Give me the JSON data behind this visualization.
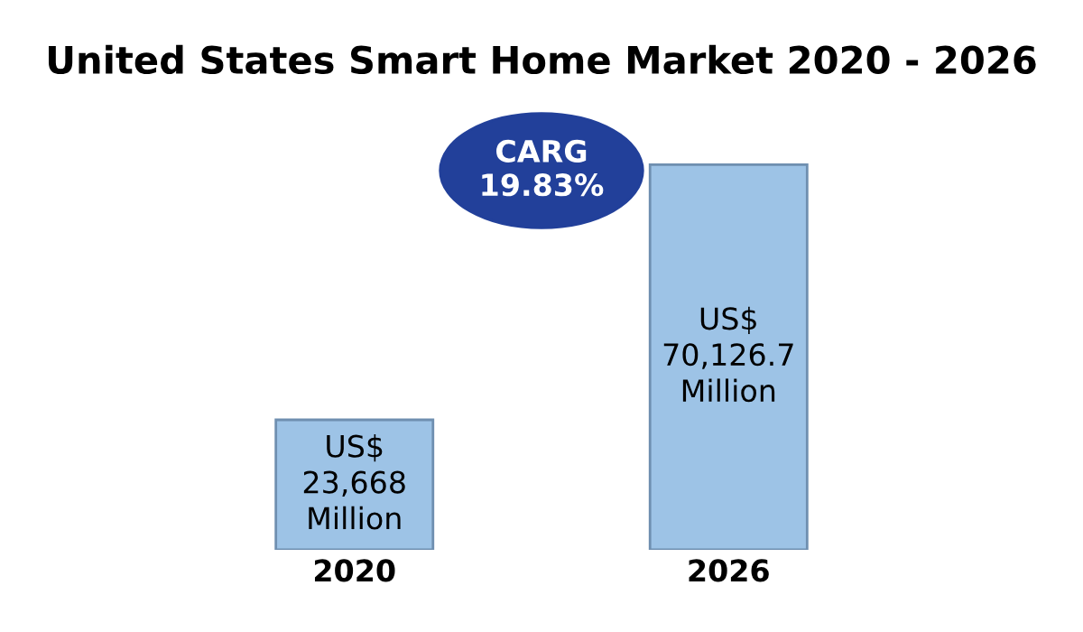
{
  "chart_data": {
    "type": "bar",
    "title": "United States Smart Home Market 2020 - 2026",
    "categories": [
      "2020",
      "2026"
    ],
    "values": [
      23668,
      70126.7
    ],
    "value_labels": [
      "US$\n23,668\nMillion",
      "US$\n70,126.7\nMillion"
    ],
    "color": "#9dc3e6",
    "annotations": [
      "CARG\n19.83%"
    ],
    "grid": false,
    "legend": false
  }
}
